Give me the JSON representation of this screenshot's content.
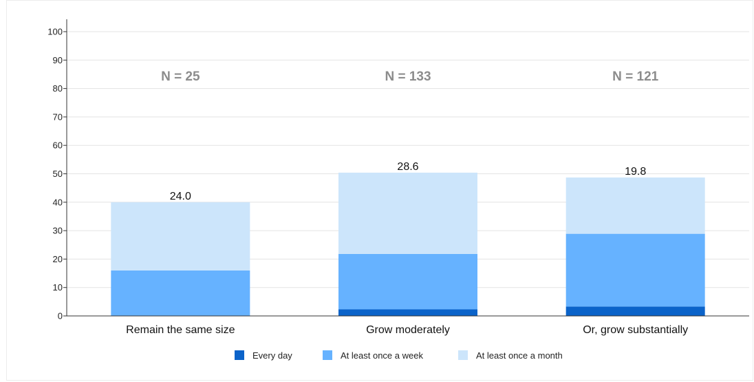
{
  "chart_data": {
    "type": "bar",
    "stacked": true,
    "categories": [
      "Remain the same size",
      "Grow moderately",
      "Or, grow substantially"
    ],
    "annotations": [
      "N = 25",
      "N = 133",
      "N = 121"
    ],
    "series": [
      {
        "name": "Every day",
        "color": "#0b63c9",
        "values": [
          0,
          2.3,
          3.3
        ],
        "labels": [
          "",
          "2.3",
          "3.3"
        ]
      },
      {
        "name": "At least once a week",
        "color": "#66b2ff",
        "values": [
          16.0,
          19.5,
          25.6
        ],
        "labels": [
          "16.0",
          "19.5",
          "25.6"
        ]
      },
      {
        "name": "At least once a month",
        "color": "#cce5fb",
        "values": [
          24.0,
          28.6,
          19.8
        ],
        "labels": [
          "24.0",
          "28.6",
          "19.8"
        ]
      }
    ],
    "ylim": [
      0,
      100
    ],
    "yticks": [
      0,
      10,
      20,
      30,
      40,
      50,
      60,
      70,
      80,
      90,
      100
    ],
    "grid": true,
    "legend_position": "bottom"
  }
}
